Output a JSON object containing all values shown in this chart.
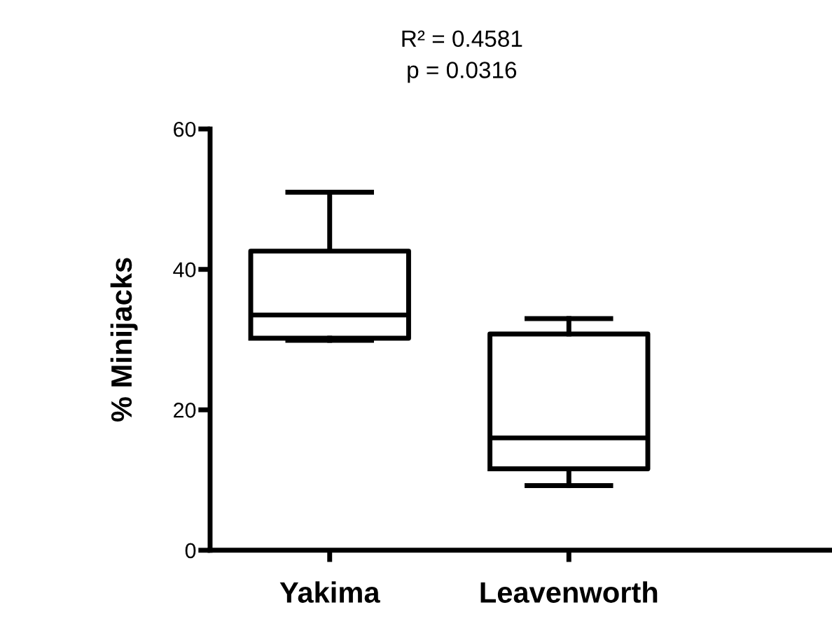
{
  "chart_data": {
    "type": "box",
    "title": "R² = 0.4581",
    "subtitle": "p = 0.0316",
    "ylabel": "% Minijacks",
    "categories": [
      "Yakima",
      "Leavenworth"
    ],
    "boxes": [
      {
        "low": 29.9,
        "q1": 30.2,
        "median": 33.5,
        "q3": 42.6,
        "high": 51
      },
      {
        "low": 9.2,
        "q1": 11.6,
        "median": 16.0,
        "q3": 30.8,
        "high": 33.0
      }
    ],
    "ylim": [
      0,
      60
    ],
    "yticks": [
      0,
      20,
      40,
      60
    ],
    "grid": false,
    "legend": false
  }
}
